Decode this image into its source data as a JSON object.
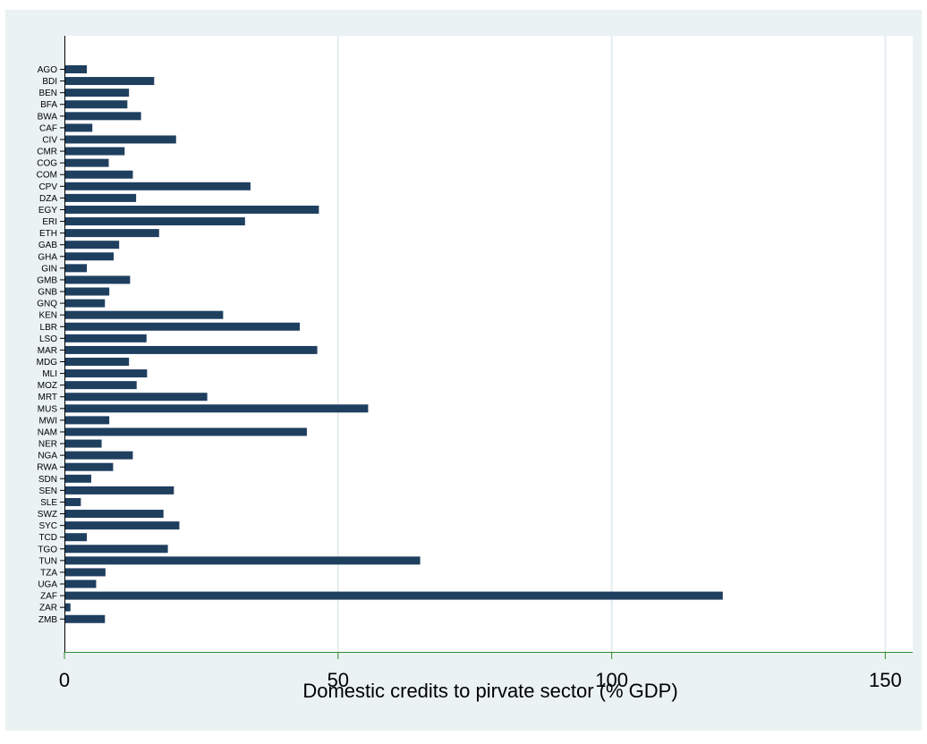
{
  "chart_data": {
    "type": "bar",
    "orientation": "horizontal",
    "title": "",
    "xlabel": "Domestic credits to pirvate sector (% GDP)",
    "ylabel": "",
    "xlim": [
      0,
      155
    ],
    "x_ticks": [
      0,
      50,
      100,
      150
    ],
    "x_tick_labels": [
      "0",
      "50",
      "100",
      "150"
    ],
    "grid": "vertical",
    "legend": "none",
    "colors": {
      "bar": "#1f3f5f",
      "plot_background": "#ffffff",
      "outer_background": "#eaf2f3",
      "gridline": "#e3ecef",
      "axis_x": "#2e8b2e",
      "axis_y": "#000000"
    },
    "categories": [
      "AGO",
      "BDI",
      "BEN",
      "BFA",
      "BWA",
      "CAF",
      "CIV",
      "CMR",
      "COG",
      "COM",
      "CPV",
      "DZA",
      "EGY",
      "ERI",
      "ETH",
      "GAB",
      "GHA",
      "GIN",
      "GMB",
      "GNB",
      "GNQ",
      "KEN",
      "LBR",
      "LSO",
      "MAR",
      "MDG",
      "MLI",
      "MOZ",
      "MRT",
      "MUS",
      "MWI",
      "NAM",
      "NER",
      "NGA",
      "RWA",
      "SDN",
      "SEN",
      "SLE",
      "SWZ",
      "SYC",
      "TCD",
      "TGO",
      "TUN",
      "TZA",
      "UGA",
      "ZAF",
      "ZAR",
      "ZMB"
    ],
    "values": [
      4.1,
      16.4,
      11.8,
      11.5,
      14.0,
      5.1,
      20.4,
      11.0,
      8.1,
      12.5,
      34.0,
      13.1,
      46.5,
      33.0,
      17.3,
      10.0,
      9.0,
      4.1,
      12.0,
      8.2,
      7.4,
      29.0,
      43.0,
      15.0,
      46.2,
      11.8,
      15.1,
      13.2,
      26.1,
      55.5,
      8.2,
      44.3,
      6.8,
      12.5,
      8.9,
      4.9,
      20.0,
      3.0,
      18.1,
      21.0,
      4.1,
      18.9,
      65.0,
      7.5,
      5.8,
      120.3,
      1.1,
      7.4
    ]
  }
}
